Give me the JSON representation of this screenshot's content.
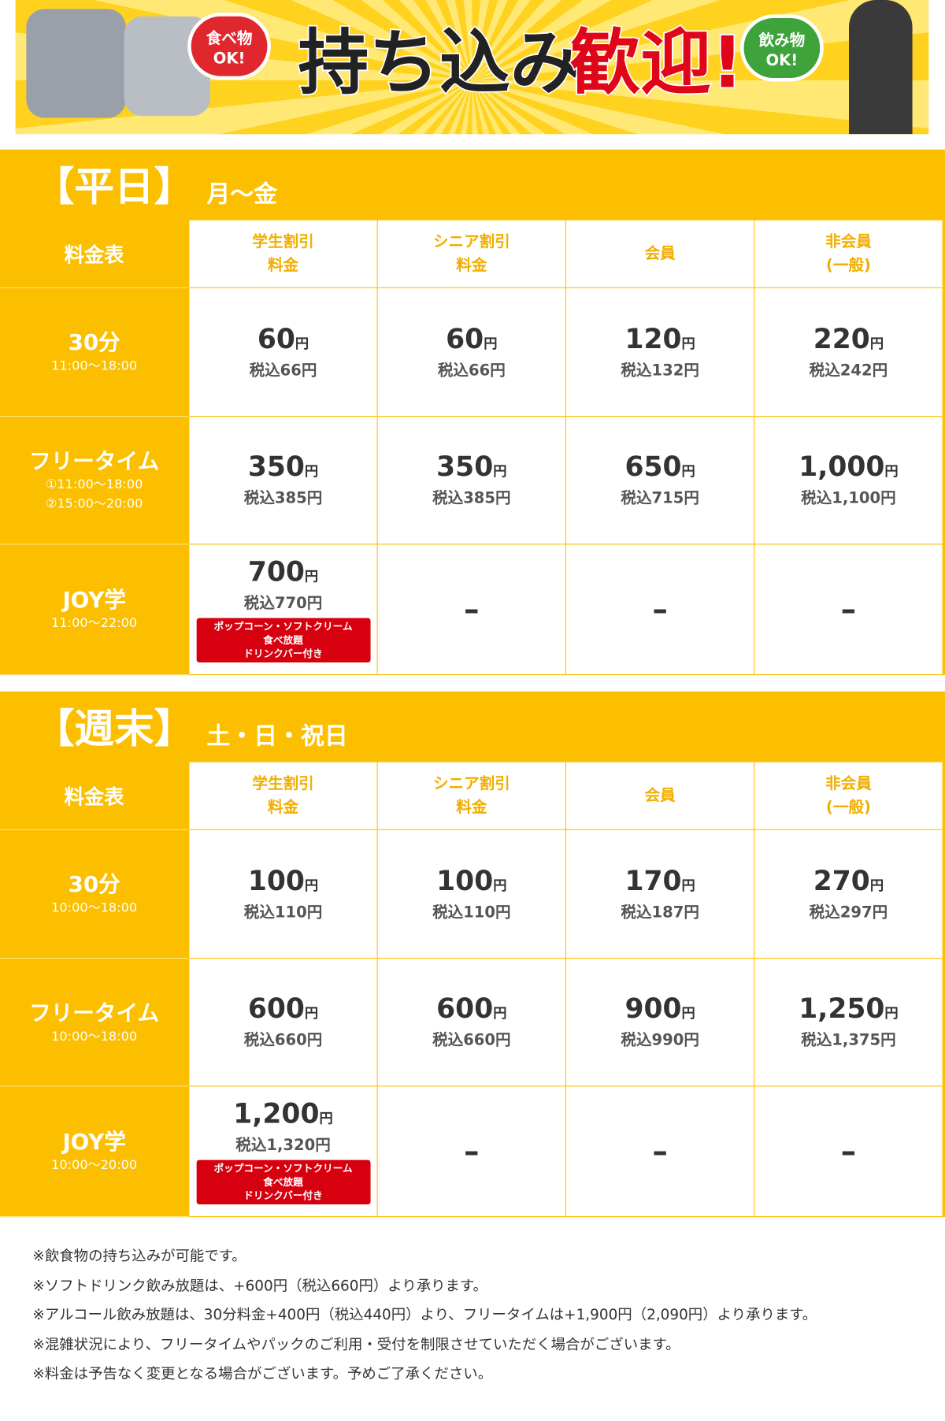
{
  "banner": {
    "left_badge": [
      "食べ物",
      "OK!"
    ],
    "headline": "持ち込み",
    "headline_accent": "歓迎!",
    "right_badge": [
      "飲み物",
      "OK!"
    ]
  },
  "sections": [
    {
      "title": "【平日】",
      "days": "月〜金",
      "header": [
        "料金表",
        [
          "学生割引",
          "料金"
        ],
        [
          "シニア割引",
          "料金"
        ],
        [
          "会員"
        ],
        [
          "非会員",
          "(一般)"
        ]
      ],
      "rows": [
        {
          "label": "30分",
          "hours": [
            "11:00〜18:00"
          ],
          "cells": [
            {
              "price": "60",
              "unit": "円",
              "tax": "税込66円"
            },
            {
              "price": "60",
              "unit": "円",
              "tax": "税込66円"
            },
            {
              "price": "120",
              "unit": "円",
              "tax": "税込132円"
            },
            {
              "price": "220",
              "unit": "円",
              "tax": "税込242円"
            }
          ]
        },
        {
          "label": "フリータイム",
          "hours": [
            "①11:00〜18:00",
            "②15:00〜20:00"
          ],
          "cells": [
            {
              "price": "350",
              "unit": "円",
              "tax": "税込385円"
            },
            {
              "price": "350",
              "unit": "円",
              "tax": "税込385円"
            },
            {
              "price": "650",
              "unit": "円",
              "tax": "税込715円"
            },
            {
              "price": "1,000",
              "unit": "円",
              "tax": "税込1,100円"
            }
          ]
        },
        {
          "label": "JOY学",
          "hours": [
            "11:00〜22:00"
          ],
          "cells": [
            {
              "price": "700",
              "unit": "円",
              "tax": "税込770円",
              "note": [
                "ポップコーン・ソフトクリーム",
                "食べ放題",
                "ドリンクバー付き"
              ]
            },
            {
              "dash": "–"
            },
            {
              "dash": "–"
            },
            {
              "dash": "–"
            }
          ]
        }
      ]
    },
    {
      "title": "【週末】",
      "days": "土・日・祝日",
      "header": [
        "料金表",
        [
          "学生割引",
          "料金"
        ],
        [
          "シニア割引",
          "料金"
        ],
        [
          "会員"
        ],
        [
          "非会員",
          "(一般)"
        ]
      ],
      "rows": [
        {
          "label": "30分",
          "hours": [
            "10:00〜18:00"
          ],
          "cells": [
            {
              "price": "100",
              "unit": "円",
              "tax": "税込110円"
            },
            {
              "price": "100",
              "unit": "円",
              "tax": "税込110円"
            },
            {
              "price": "170",
              "unit": "円",
              "tax": "税込187円"
            },
            {
              "price": "270",
              "unit": "円",
              "tax": "税込297円"
            }
          ]
        },
        {
          "label": "フリータイム",
          "hours": [
            "10:00〜18:00"
          ],
          "cells": [
            {
              "price": "600",
              "unit": "円",
              "tax": "税込660円"
            },
            {
              "price": "600",
              "unit": "円",
              "tax": "税込660円"
            },
            {
              "price": "900",
              "unit": "円",
              "tax": "税込990円"
            },
            {
              "price": "1,250",
              "unit": "円",
              "tax": "税込1,375円"
            }
          ]
        },
        {
          "label": "JOY学",
          "hours": [
            "10:00〜20:00"
          ],
          "cells": [
            {
              "price": "1,200",
              "unit": "円",
              "tax": "税込1,320円",
              "note": [
                "ポップコーン・ソフトクリーム",
                "食べ放題",
                "ドリンクバー付き"
              ]
            },
            {
              "dash": "–"
            },
            {
              "dash": "–"
            },
            {
              "dash": "–"
            }
          ]
        }
      ]
    }
  ],
  "notes": [
    "※飲食物の持ち込みが可能です。",
    "※ソフトドリンク飲み放題は、+600円（税込660円）より承ります。",
    "※アルコール飲み放題は、30分料金+400円（税込440円）より、フリータイムは+1,900円（2,090円）より承ります。",
    "※混雑状況により、フリータイムやパックのご利用・受付を制限させていただく場合がございます。",
    "※料金は予告なく変更となる場合がございます。予めご了承ください。"
  ]
}
